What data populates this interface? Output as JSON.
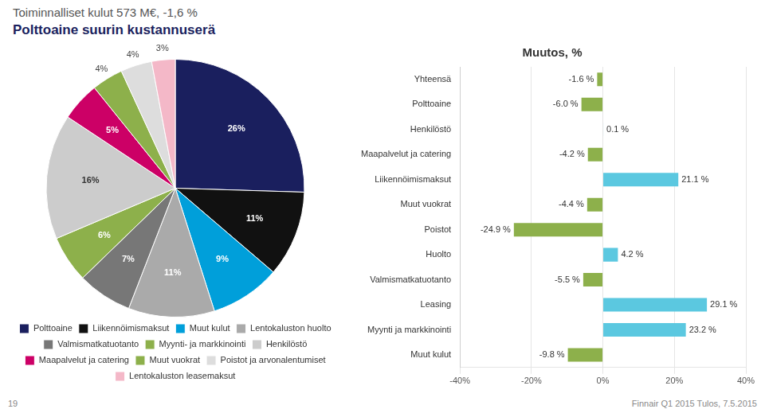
{
  "chart_data": [
    {
      "type": "pie",
      "title": "Polttoaine suurin kustannuserä",
      "subtitle": "Toiminnalliset kulut 573 M€, -1,6 %",
      "categories": [
        "Polttoaine",
        "Liikennöimismaksut",
        "Muut kulut",
        "Lentokaluston huolto",
        "Valmismatkatuotanto",
        "Myynti- ja markkinointi",
        "Henkilöstö",
        "Maapalvelut ja catering",
        "Muut vuokrat",
        "Poistot ja arvonalentumiset",
        "Lentokaluston leasemaksut"
      ],
      "values": [
        26,
        11,
        9,
        11,
        7,
        6,
        16,
        5,
        4,
        4,
        3
      ],
      "value_labels": [
        "26%",
        "11%",
        "9%",
        "11%",
        "7%",
        "6%",
        "16%",
        "5%",
        "4%",
        "4%",
        "3%"
      ],
      "colors": [
        "#1a1f5e",
        "#111111",
        "#009fda",
        "#aaaaaa",
        "#777777",
        "#8db04b",
        "#cccccc",
        "#cc0066",
        "#8db04b",
        "#dddddd",
        "#f4b8c8"
      ],
      "data_labels": true,
      "legend": "bottom",
      "annotations": [
        "19",
        "Finnair Q1 2015 Tulos, 7.5.2015"
      ]
    },
    {
      "type": "bar",
      "orientation": "horizontal",
      "title": "Muutos, %",
      "categories": [
        "Yhteensä",
        "Polttoaine",
        "Henkilöstö",
        "Maapalvelut ja catering",
        "Liikennöimismaksut",
        "Muut vuokrat",
        "Poistot",
        "Huolto",
        "Valmismatkatuotanto",
        "Leasing",
        "Myynti ja markkinointi",
        "Muut kulut"
      ],
      "values": [
        -1.6,
        -6.0,
        0.1,
        -4.2,
        21.1,
        -4.4,
        -24.9,
        4.2,
        -5.5,
        29.1,
        23.2,
        -9.8
      ],
      "value_labels": [
        "-1.6 %",
        "-6.0 %",
        "0.1 %",
        "-4.2 %",
        "21.1 %",
        "-4.4 %",
        "-24.9 %",
        "4.2 %",
        "-5.5 %",
        "29.1 %",
        "23.2 %",
        "-9.8 %"
      ],
      "colors": [
        "#8db04b",
        "#8db04b",
        "#5bc8e0",
        "#8db04b",
        "#5bc8e0",
        "#8db04b",
        "#8db04b",
        "#5bc8e0",
        "#8db04b",
        "#5bc8e0",
        "#5bc8e0",
        "#8db04b"
      ],
      "data_labels": true,
      "xlim": [
        -40,
        40
      ],
      "xticks": [
        {
          "value": -40,
          "label": "-40%"
        },
        {
          "value": -20,
          "label": "-20%"
        },
        {
          "value": 0,
          "label": "0%"
        },
        {
          "value": 20,
          "label": "20%"
        },
        {
          "value": 40,
          "label": "40%"
        }
      ],
      "grid": true
    }
  ]
}
